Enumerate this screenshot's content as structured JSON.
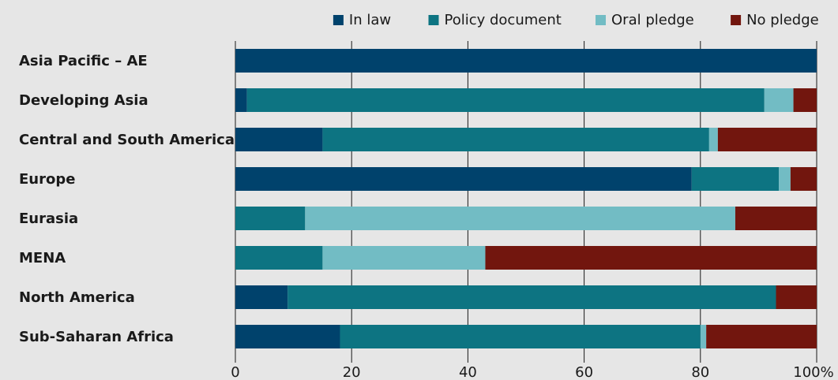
{
  "chart_data": {
    "type": "bar",
    "orientation": "horizontal",
    "stacked": true,
    "categories": [
      "Asia Pacific – AE",
      "Developing Asia",
      "Central and South America",
      "Europe",
      "Eurasia",
      "MENA",
      "North America",
      "Sub-Saharan Africa"
    ],
    "series": [
      {
        "name": "In law",
        "color": "#00426c",
        "values": [
          100,
          2,
          15,
          78.5,
          0,
          0,
          9,
          18
        ]
      },
      {
        "name": "Policy document",
        "color": "#0d7482",
        "values": [
          0,
          89,
          66.5,
          15,
          12,
          15,
          84,
          62
        ]
      },
      {
        "name": "Oral pledge",
        "color": "#72bcc4",
        "values": [
          0,
          5,
          1.5,
          2,
          74,
          28,
          0,
          1
        ]
      },
      {
        "name": "No pledge",
        "color": "#72160e",
        "values": [
          0,
          4,
          17,
          4.5,
          14,
          57,
          7,
          19
        ]
      }
    ],
    "x_ticks": [
      "0",
      "20",
      "40",
      "60",
      "80",
      "100%"
    ],
    "xlim": [
      0,
      100
    ],
    "grid": "vertical",
    "legend_position": "top-right",
    "title": "",
    "xlabel": "",
    "ylabel": ""
  }
}
